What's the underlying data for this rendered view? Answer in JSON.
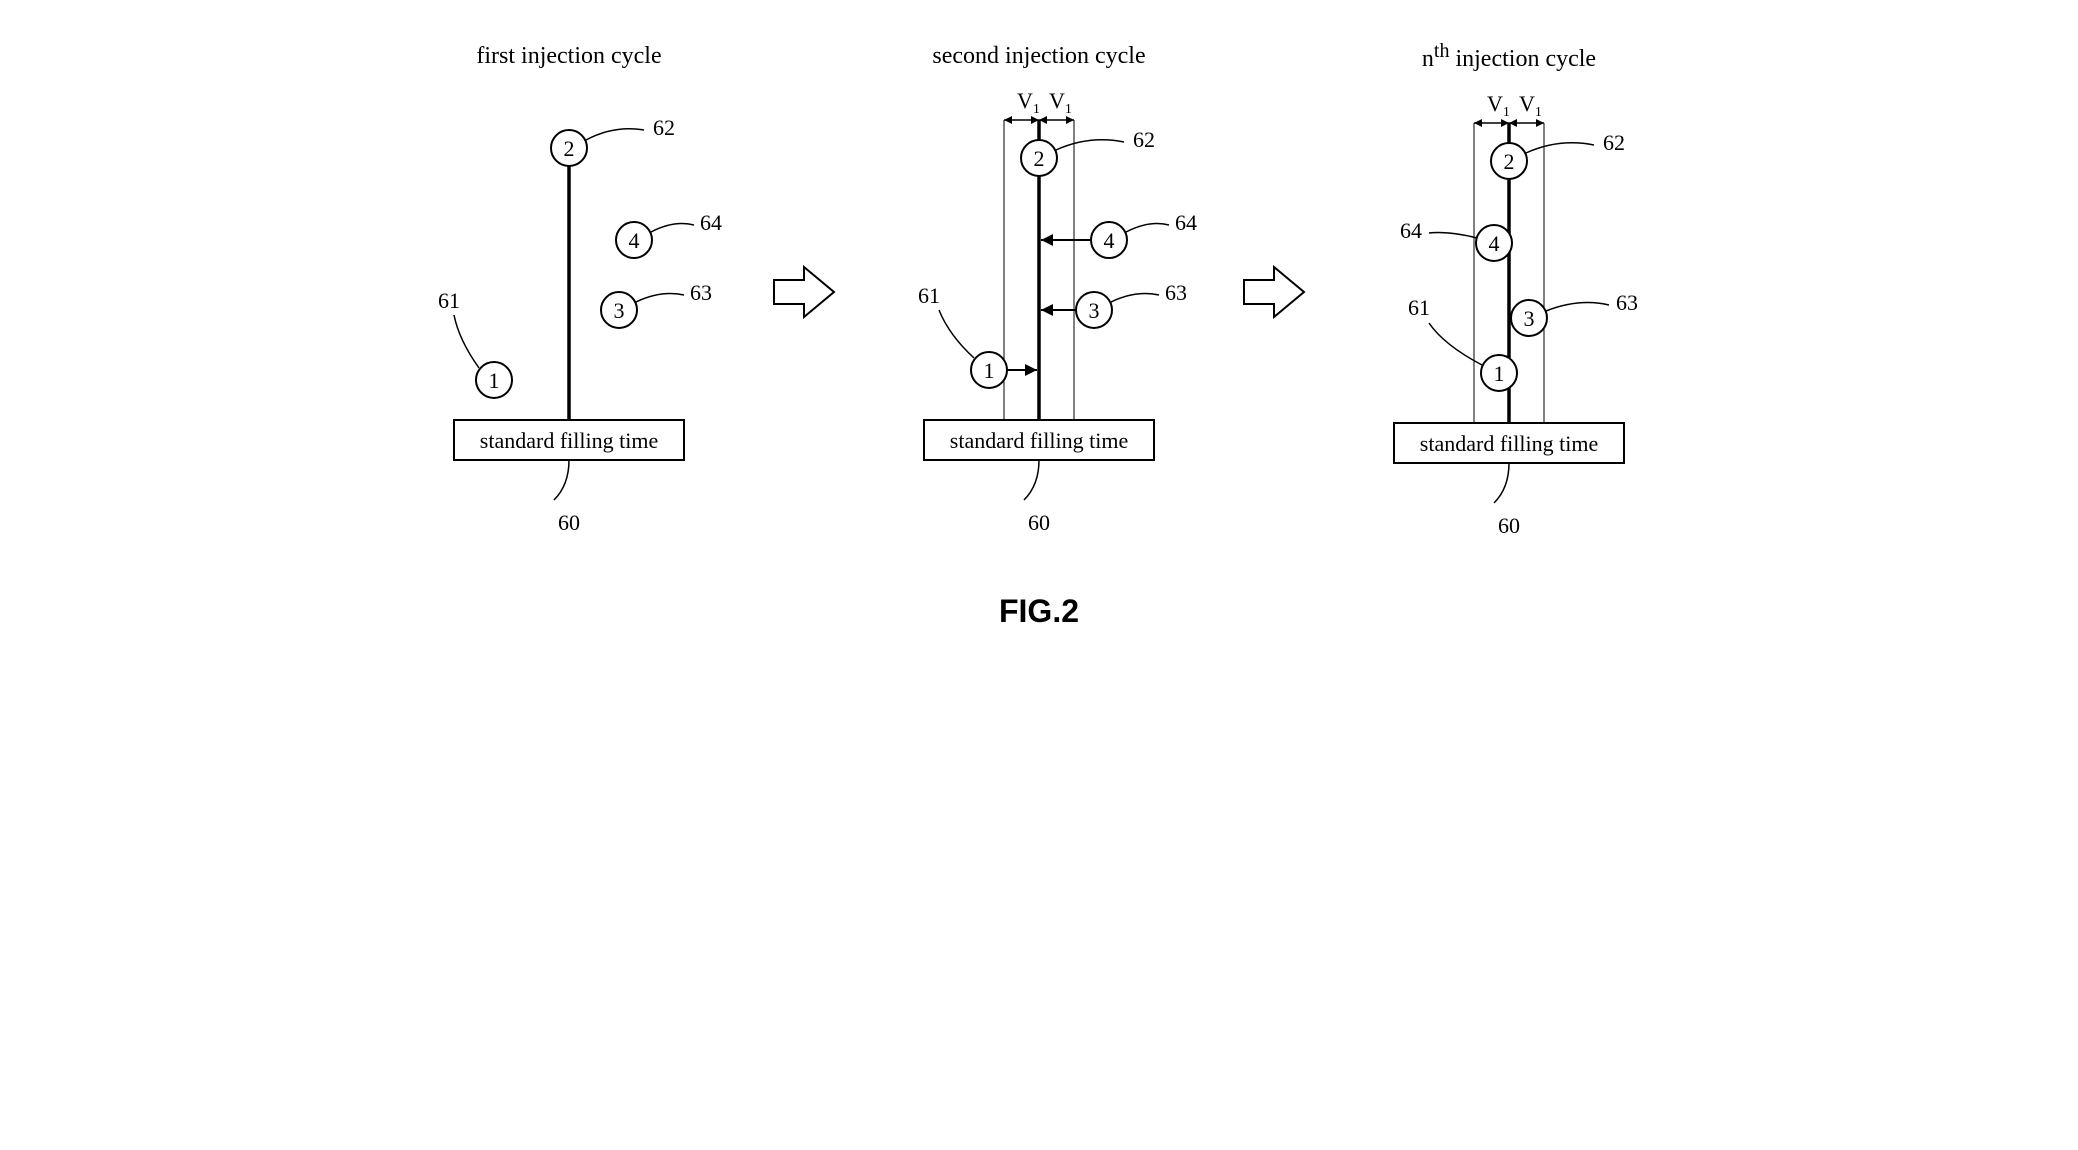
{
  "figure_label": "FIG.2",
  "panels": {
    "first": {
      "title_html": "first injection cycle"
    },
    "second": {
      "title_html": "second injection cycle"
    },
    "nth": {
      "title_html": "n<sup>th</sup> injection cycle"
    }
  },
  "box_label": "standard filling time",
  "box_ref": "60",
  "nodes": {
    "n1": {
      "num": "1",
      "ref": "61"
    },
    "n2": {
      "num": "2",
      "ref": "62"
    },
    "n3": {
      "num": "3",
      "ref": "63"
    },
    "n4": {
      "num": "4",
      "ref": "64"
    }
  },
  "tol_label_left": "V",
  "tol_label_right": "V",
  "tol_sub_left": "1",
  "tol_sub_right": "1",
  "style": {
    "circle_r": 18,
    "stroke": "#000000",
    "thin": 1.5,
    "thick": 3.5,
    "font_num": 22,
    "font_ref": 22,
    "font_box": 22,
    "font_v": 22
  }
}
